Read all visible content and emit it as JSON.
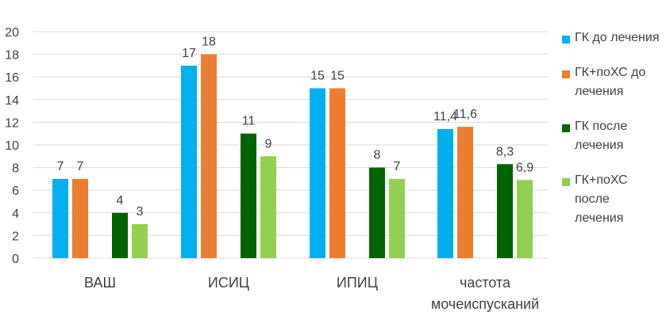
{
  "chart_data": {
    "type": "bar",
    "categories": [
      "ВАШ",
      "ИСИЦ",
      "ИПИЦ",
      "частота мочеиспусканий"
    ],
    "category_lines": [
      [
        "ВАШ"
      ],
      [
        "ИСИЦ"
      ],
      [
        "ИПИЦ"
      ],
      [
        "частота",
        "мочеиспусканий"
      ]
    ],
    "series": [
      {
        "name": "ГК до лечения",
        "color": "#00B0F0",
        "values": [
          7,
          17,
          15,
          11.4
        ],
        "labels": [
          "7",
          "17",
          "15",
          "11,4"
        ]
      },
      {
        "name": "ГК+поХС до лечения",
        "color": "#ED7D31",
        "values": [
          7,
          18,
          15,
          11.6
        ],
        "labels": [
          "7",
          "18",
          "15",
          "11,6"
        ]
      },
      {
        "name": "ГК после лечения",
        "color": "#006400",
        "values": [
          4,
          11,
          8,
          8.3
        ],
        "labels": [
          "4",
          "11",
          "8",
          "8,3"
        ]
      },
      {
        "name": "ГК+поХС после лечения",
        "color": "#92D050",
        "values": [
          3,
          9,
          7,
          6.9
        ],
        "labels": [
          "3",
          "9",
          "7",
          "6,9"
        ]
      }
    ],
    "ylim": [
      0,
      20
    ],
    "yticks": [
      "0",
      "2",
      "4",
      "6",
      "8",
      "10",
      "12",
      "14",
      "16",
      "18",
      "20"
    ],
    "grid": true,
    "legend_position": "right"
  },
  "legend": {
    "items": [
      {
        "lines": [
          "ГК до лечения"
        ],
        "color": "#00B0F0"
      },
      {
        "lines": [
          "ГК+поХС до",
          "лечения"
        ],
        "color": "#ED7D31"
      },
      {
        "lines": [
          "ГК после",
          "лечения"
        ],
        "color": "#006400"
      },
      {
        "lines": [
          "ГК+поХС",
          "после",
          "лечения"
        ],
        "color": "#92D050"
      }
    ]
  }
}
